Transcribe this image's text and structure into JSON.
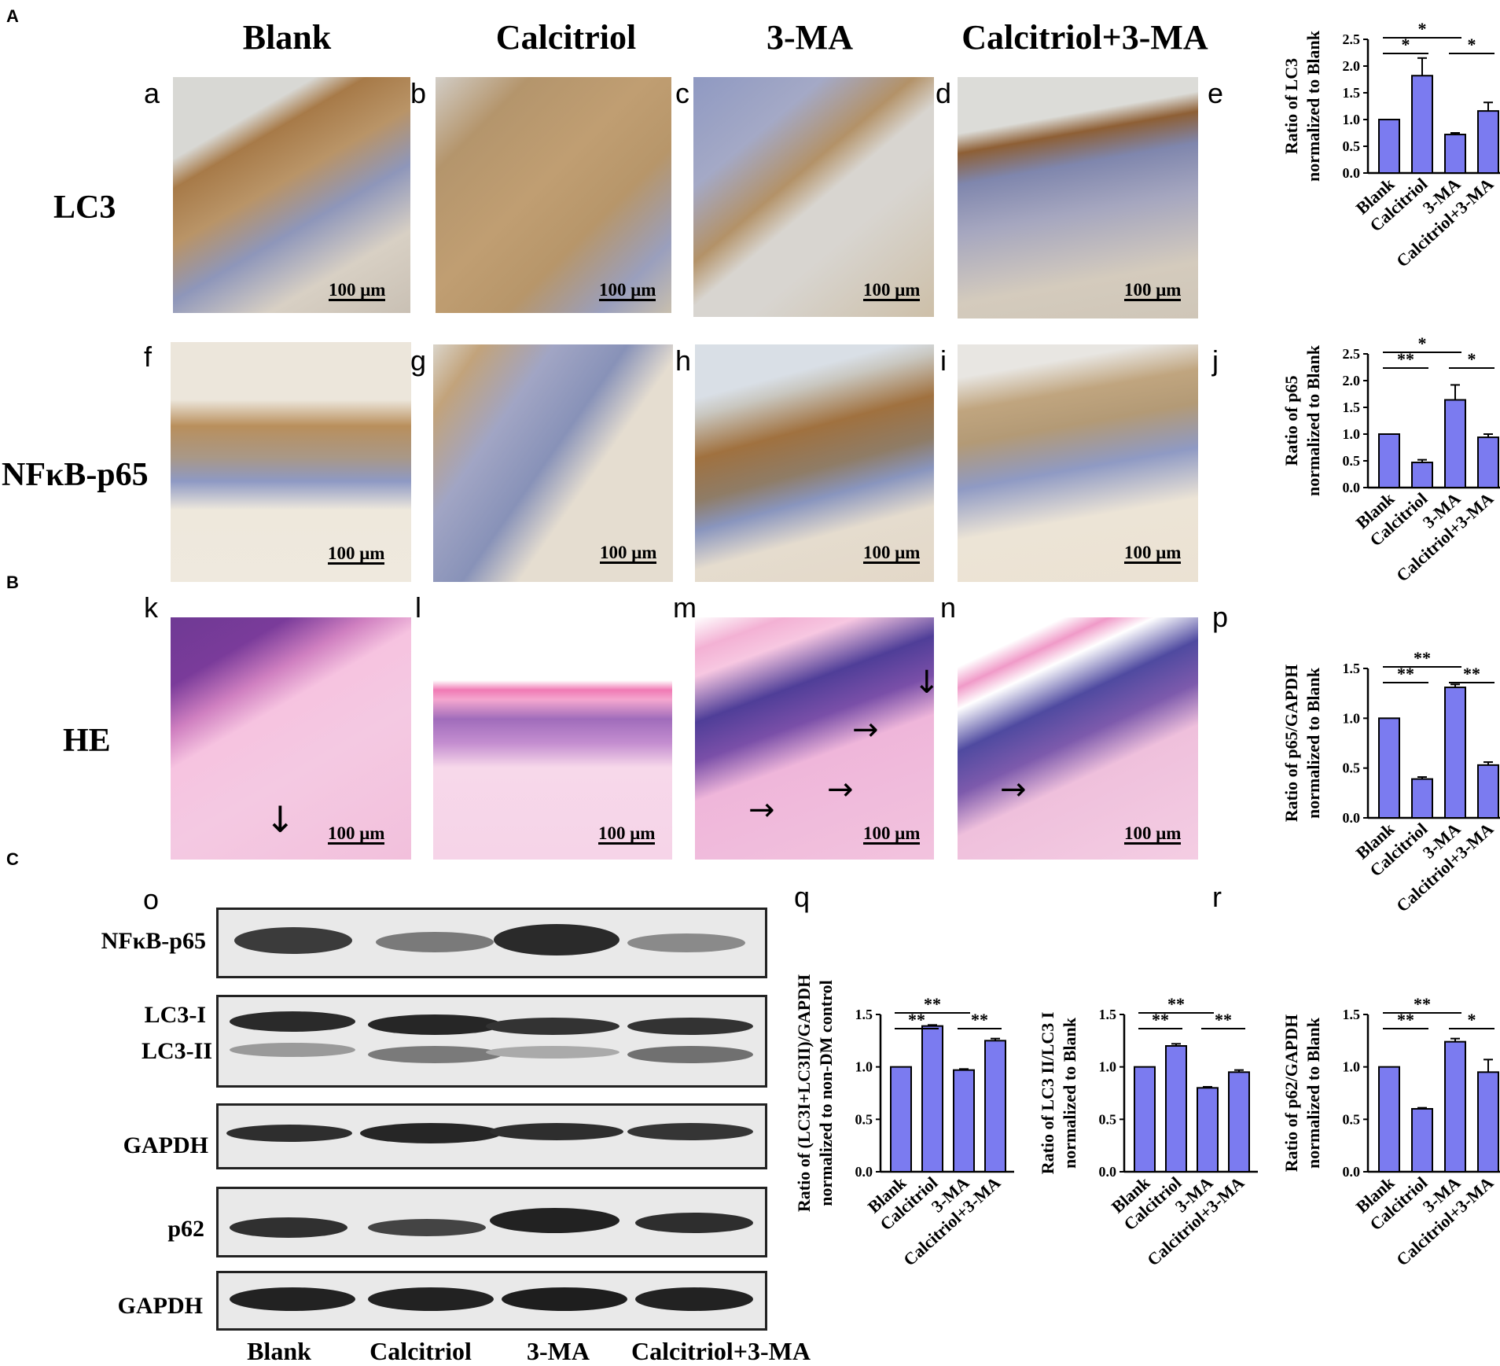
{
  "sections": {
    "A": "A",
    "B": "B",
    "C": "C"
  },
  "columns": [
    "Blank",
    "Calcitriol",
    "3-MA",
    "Calcitriol+3-MA"
  ],
  "rows": {
    "lc3": "LC3",
    "p65": "NFκB-p65",
    "he": "HE"
  },
  "panels": {
    "a": "a",
    "b": "b",
    "c": "c",
    "d": "d",
    "e": "e",
    "f": "f",
    "g": "g",
    "h": "h",
    "i": "i",
    "j": "j",
    "k": "k",
    "l": "l",
    "m": "m",
    "n": "n",
    "o": "o",
    "p": "p",
    "q": "q",
    "r": "r"
  },
  "scale_bar": "100 μm",
  "blot": {
    "labels": [
      "NFκB-p65",
      "LC3-I",
      "LC3-II",
      "GAPDH",
      "p62",
      "GAPDH"
    ],
    "lanes": [
      "Blank",
      "Calcitriol",
      "3-MA",
      "Calcitriol+3-MA"
    ]
  },
  "colors": {
    "bar": "#7b7bf0",
    "he_pink": "#f3c2dd",
    "he_purple": "#7a3b9a",
    "ihc_brown": "#a97a45",
    "ihc_blue": "#6f7fae"
  },
  "chart_data": [
    {
      "id": "e",
      "type": "bar",
      "categories": [
        "Blank",
        "Calcitriol",
        "3-MA",
        "Calcitriol+3-MA"
      ],
      "values": [
        1.0,
        1.82,
        0.72,
        1.16
      ],
      "errors": [
        0,
        0.33,
        0.03,
        0.16
      ],
      "ylabel": [
        "Ratio of LC3",
        "normalized to Blank"
      ],
      "ylim": [
        0,
        2.5
      ],
      "yticks": [
        "0.0",
        "0.5",
        "1.0",
        "1.5",
        "2.0",
        "2.5"
      ],
      "significance": [
        {
          "from": 0,
          "to": 1,
          "label": "*",
          "level": 1
        },
        {
          "from": 0,
          "to": 2,
          "label": "*",
          "level": 2
        },
        {
          "from": 2,
          "to": 3,
          "label": "*",
          "level": 1
        }
      ]
    },
    {
      "id": "j",
      "type": "bar",
      "categories": [
        "Blank",
        "Calcitriol",
        "3-MA",
        "Calcitriol+3-MA"
      ],
      "values": [
        1.0,
        0.47,
        1.64,
        0.94
      ],
      "errors": [
        0,
        0.05,
        0.28,
        0.06
      ],
      "ylabel": [
        "Ratio of p65",
        "normalized to Blank"
      ],
      "ylim": [
        0,
        2.5
      ],
      "yticks": [
        "0.0",
        "0.5",
        "1.0",
        "1.5",
        "2.0",
        "2.5"
      ],
      "significance": [
        {
          "from": 0,
          "to": 1,
          "label": "**",
          "level": 1
        },
        {
          "from": 0,
          "to": 2,
          "label": "*",
          "level": 2
        },
        {
          "from": 2,
          "to": 3,
          "label": "*",
          "level": 1
        }
      ]
    },
    {
      "id": "p",
      "type": "bar",
      "categories": [
        "Blank",
        "Calcitriol",
        "3-MA",
        "Calcitriol+3-MA"
      ],
      "values": [
        1.0,
        0.39,
        1.31,
        0.53
      ],
      "errors": [
        0,
        0.02,
        0.03,
        0.03
      ],
      "ylabel": [
        "Ratio of p65/GAPDH",
        "normalized to Blank"
      ],
      "ylim": [
        0,
        1.5
      ],
      "yticks": [
        "0.0",
        "0.5",
        "1.0",
        "1.5"
      ],
      "significance": [
        {
          "from": 0,
          "to": 1,
          "label": "**",
          "level": 1
        },
        {
          "from": 0,
          "to": 2,
          "label": "**",
          "level": 2
        },
        {
          "from": 2,
          "to": 3,
          "label": "**",
          "level": 1
        }
      ]
    },
    {
      "id": "q",
      "type": "bar",
      "categories": [
        "Blank",
        "Calcitriol",
        "3-MA",
        "Calcitriol+3-MA"
      ],
      "values": [
        1.0,
        1.39,
        0.97,
        1.25
      ],
      "errors": [
        0,
        0.01,
        0.01,
        0.02
      ],
      "ylabel": [
        "Ratio of (LC3I+LC3II)/GAPDH",
        "normalized to non-DM control"
      ],
      "ylim": [
        0,
        1.5
      ],
      "yticks": [
        "0.0",
        "0.5",
        "1.0",
        "1.5"
      ],
      "significance": [
        {
          "from": 0,
          "to": 1,
          "label": "**",
          "level": 1
        },
        {
          "from": 0,
          "to": 2,
          "label": "**",
          "level": 2
        },
        {
          "from": 2,
          "to": 3,
          "label": "**",
          "level": 1
        }
      ]
    },
    {
      "id": "r1",
      "type": "bar",
      "categories": [
        "Blank",
        "Calcitriol",
        "3-MA",
        "Calcitriol+3-MA"
      ],
      "values": [
        1.0,
        1.2,
        0.8,
        0.95
      ],
      "errors": [
        0,
        0.02,
        0.01,
        0.02
      ],
      "ylabel": [
        "Ratio of LC3 II/LC3 I",
        "normalized to Blank"
      ],
      "ylim": [
        0,
        1.5
      ],
      "yticks": [
        "0.0",
        "0.5",
        "1.0",
        "1.5"
      ],
      "significance": [
        {
          "from": 0,
          "to": 1,
          "label": "**",
          "level": 1
        },
        {
          "from": 0,
          "to": 2,
          "label": "**",
          "level": 2
        },
        {
          "from": 2,
          "to": 3,
          "label": "**",
          "level": 1
        }
      ]
    },
    {
      "id": "r2",
      "type": "bar",
      "categories": [
        "Blank",
        "Calcitriol",
        "3-MA",
        "Calcitriol+3-MA"
      ],
      "values": [
        1.0,
        0.6,
        1.24,
        0.95
      ],
      "errors": [
        0,
        0.01,
        0.03,
        0.12
      ],
      "ylabel": [
        "Ratio of p62/GAPDH",
        "normalized to Blank"
      ],
      "ylim": [
        0,
        1.5
      ],
      "yticks": [
        "0.0",
        "0.5",
        "1.0",
        "1.5"
      ],
      "significance": [
        {
          "from": 0,
          "to": 1,
          "label": "**",
          "level": 1
        },
        {
          "from": 0,
          "to": 2,
          "label": "**",
          "level": 2
        },
        {
          "from": 2,
          "to": 3,
          "label": "*",
          "level": 1
        }
      ]
    }
  ]
}
